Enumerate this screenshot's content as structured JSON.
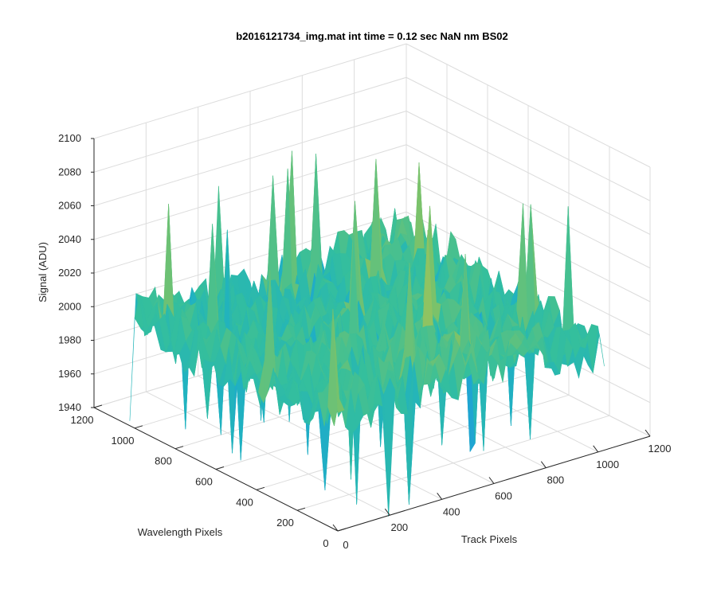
{
  "chart_data": {
    "type": "surface",
    "title": "b2016121734_img.mat int time = 0.12 sec  NaN nm BS02",
    "xlabel": "Track Pixels",
    "ylabel": "Wavelength Pixels",
    "zlabel": "Signal (ADU)",
    "xlim": [
      0,
      1200
    ],
    "ylim": [
      0,
      1200
    ],
    "zlim": [
      1940,
      2100
    ],
    "x_ticks": [
      "0",
      "200",
      "400",
      "600",
      "800",
      "1000",
      "1200"
    ],
    "y_ticks": [
      "0",
      "200",
      "400",
      "600",
      "800",
      "1000",
      "1200"
    ],
    "z_ticks": [
      "1940",
      "1960",
      "1980",
      "2000",
      "2020",
      "2040",
      "2060",
      "2080",
      "2100"
    ],
    "grid": true,
    "data_extent": {
      "x": [
        0,
        1024
      ],
      "y": [
        0,
        1024
      ]
    },
    "signal_summary": {
      "typical_min": 1965,
      "typical_max": 2045,
      "peak_max": 2080,
      "trough_min": 1930
    },
    "colormap": [
      "#2c6fd8",
      "#1f9be0",
      "#20b2c0",
      "#35bf9c",
      "#7cc26a",
      "#c7c64a",
      "#e5c840"
    ]
  }
}
